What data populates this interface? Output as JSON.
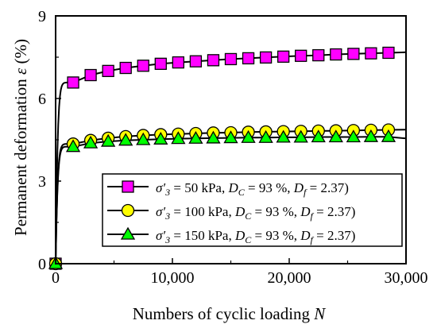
{
  "chart_data": {
    "type": "line",
    "xlabel": "Numbers of cyclic loading",
    "xlabel_var": "N",
    "ylabel": "Permanent deformation",
    "ylabel_var": "ε",
    "ylabel_unit": "(%)",
    "xlim": [
      0,
      30000
    ],
    "ylim": [
      0,
      9
    ],
    "x_ticks": [
      0,
      10000,
      20000,
      30000
    ],
    "x_tick_labels": [
      "0",
      "10,000",
      "20,000",
      "30,000"
    ],
    "y_ticks": [
      0,
      3,
      6,
      9
    ],
    "y_tick_labels": [
      "0",
      "3",
      "6",
      "9"
    ],
    "grid": false,
    "legend_position": "lower-right",
    "series": [
      {
        "name": "σ′3 = 50 kPa, DC = 93 %, Df = 2.37)",
        "legend": {
          "sigma_value": "= 50 kPa,",
          "dc_value": "= 93 %,",
          "df_value": "= 2.37)"
        },
        "marker": "square",
        "color": "#ff00ff",
        "x": [
          0,
          1500,
          3000,
          4500,
          6000,
          7500,
          9000,
          10500,
          12000,
          13500,
          15000,
          16500,
          18000,
          19500,
          21000,
          22500,
          24000,
          25500,
          27000,
          28500
        ],
        "values": [
          0,
          6.58,
          6.85,
          7.0,
          7.11,
          7.19,
          7.26,
          7.31,
          7.35,
          7.39,
          7.43,
          7.46,
          7.49,
          7.52,
          7.55,
          7.57,
          7.6,
          7.62,
          7.64,
          7.66
        ],
        "fit_end": 7.68
      },
      {
        "name": "σ′3 = 100 kPa, DC = 93 %, Df = 2.37)",
        "legend": {
          "sigma_value": "= 100 kPa,",
          "dc_value": "= 93 %,",
          "df_value": "= 2.37)"
        },
        "marker": "circle",
        "color": "#ffff00",
        "x": [
          0,
          1500,
          3000,
          4500,
          6000,
          7500,
          9000,
          10500,
          12000,
          13500,
          15000,
          16500,
          18000,
          19500,
          21000,
          22500,
          24000,
          25500,
          27000,
          28500
        ],
        "values": [
          0,
          4.35,
          4.48,
          4.56,
          4.62,
          4.66,
          4.69,
          4.71,
          4.73,
          4.75,
          4.76,
          4.78,
          4.79,
          4.8,
          4.81,
          4.82,
          4.83,
          4.84,
          4.85,
          4.86
        ],
        "fit_end": 4.87
      },
      {
        "name": "σ′3 = 150 kPa, DC = 93 %, Df = 2.37)",
        "legend": {
          "sigma_value": "= 150 kPa,",
          "dc_value": "= 93 %,",
          "df_value": "= 2.37)"
        },
        "marker": "triangle",
        "color": "#00ff00",
        "x": [
          0,
          1500,
          3000,
          4500,
          6000,
          7500,
          9000,
          10500,
          12000,
          13500,
          15000,
          16500,
          18000,
          19500,
          21000,
          22500,
          24000,
          25500,
          27000,
          28500
        ],
        "values": [
          0,
          4.25,
          4.38,
          4.44,
          4.48,
          4.5,
          4.52,
          4.54,
          4.55,
          4.56,
          4.57,
          4.58,
          4.58,
          4.59,
          4.59,
          4.6,
          4.6,
          4.6,
          4.61,
          4.61
        ],
        "fit_end": 4.55
      }
    ]
  }
}
